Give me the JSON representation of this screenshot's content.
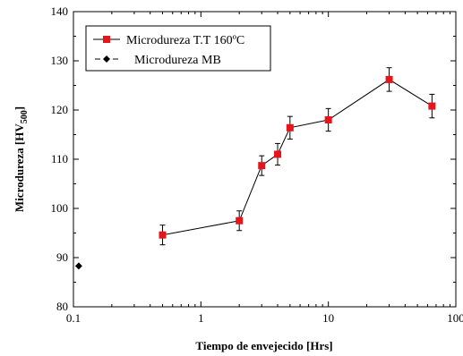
{
  "chart_data": {
    "type": "scatter",
    "xlabel": "Tiempo de envejecido [Hrs]",
    "ylabel_main": "Microdureza [HV",
    "ylabel_sub": "500",
    "ylabel_close": "]",
    "xscale": "log",
    "xlim": [
      0.1,
      100
    ],
    "ylim": [
      80,
      140
    ],
    "x_ticks": [
      0.1,
      1,
      10,
      100
    ],
    "x_tick_labels": [
      "0.1",
      "1",
      "10",
      "100"
    ],
    "y_ticks": [
      80,
      90,
      100,
      110,
      120,
      130,
      140
    ],
    "y_tick_labels": [
      "80",
      "90",
      "100",
      "110",
      "120",
      "130",
      "140"
    ],
    "legend_position": "top-left",
    "series": [
      {
        "name": "Microdureza T.T 160ºC",
        "color": "#e8141c",
        "marker": "square",
        "line": true,
        "x": [
          0.5,
          2,
          3,
          4,
          5,
          10,
          30,
          65
        ],
        "y": [
          94.6,
          97.5,
          108.7,
          111.0,
          116.4,
          118.0,
          126.2,
          120.8
        ],
        "err": [
          2.0,
          2.0,
          2.0,
          2.2,
          2.3,
          2.3,
          2.4,
          2.4
        ]
      },
      {
        "name": "Microdureza MB",
        "color": "#000000",
        "marker": "diamond",
        "line": false,
        "x": [
          0.11
        ],
        "y": [
          88.3
        ],
        "err": [
          0
        ]
      }
    ]
  }
}
